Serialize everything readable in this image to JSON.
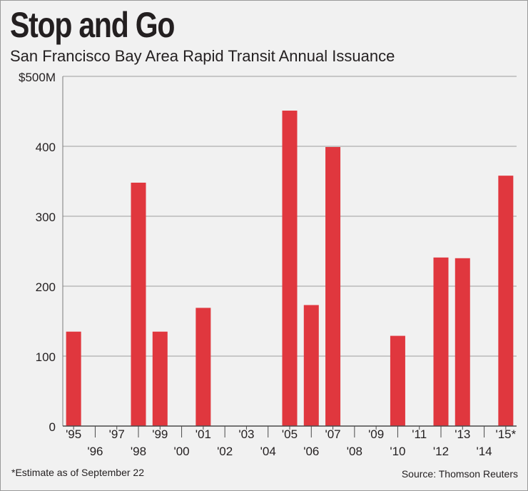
{
  "chart_data": {
    "type": "bar",
    "title": "Stop and Go",
    "subtitle": "San Francisco Bay Area Rapid Transit Annual Issuance",
    "xlabel": "",
    "ylabel": "",
    "ylim": [
      0,
      500
    ],
    "yticks": [
      0,
      100,
      200,
      300,
      400,
      500
    ],
    "ytick_labels": [
      "0",
      "100",
      "200",
      "300",
      "400",
      "$500M"
    ],
    "categories": [
      "'95",
      "'96",
      "'97",
      "'98",
      "'99",
      "'00",
      "'01",
      "'02",
      "'03",
      "'04",
      "'05",
      "'06",
      "'07",
      "'08",
      "'09",
      "'10",
      "'11",
      "'12",
      "'13",
      "'14",
      "'15*"
    ],
    "values": [
      135,
      0,
      0,
      348,
      135,
      0,
      169,
      0,
      0,
      0,
      451,
      173,
      399,
      0,
      0,
      129,
      0,
      241,
      240,
      0,
      358
    ],
    "grid": true,
    "bar_color": "#e0373e",
    "grid_color": "#9d9d9d"
  },
  "footnote": "*Estimate as of September 22",
  "source": "Source: Thomson Reuters"
}
